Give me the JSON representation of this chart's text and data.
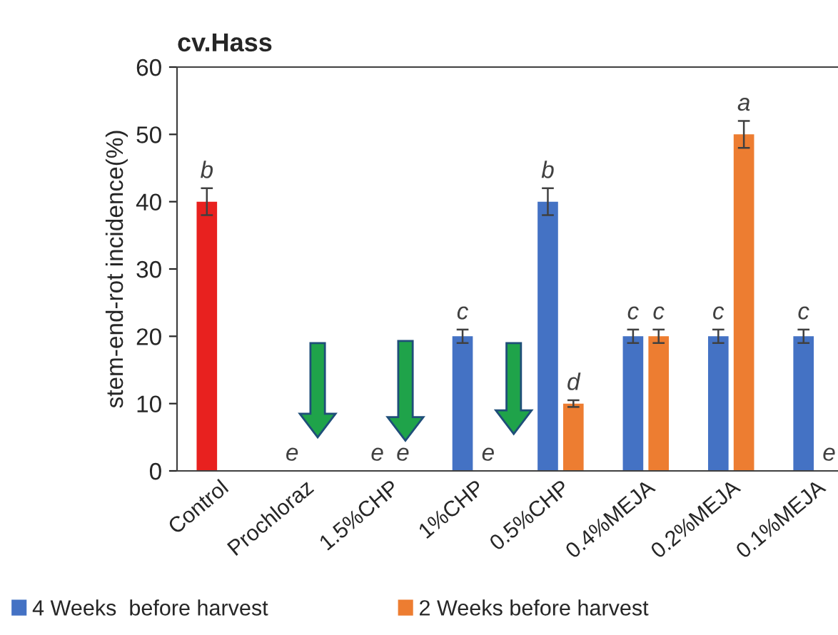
{
  "chart_data": {
    "type": "bar",
    "title": "cv.Hass",
    "ylabel": "stem-end-rot incidence(%)",
    "categories": [
      "Control",
      "Prochloraz",
      "1.5%CHP",
      "1%CHP",
      "0.5%CHP",
      "0.4%MEJA",
      "0.2%MEJA",
      "0.1%MEJA"
    ],
    "series": [
      {
        "name": "4 Weeks  before harvest",
        "color": "#4472c4",
        "colors": [
          "#e8211f",
          "#4472c4",
          "#4472c4",
          "#4472c4",
          "#4472c4",
          "#4472c4",
          "#4472c4",
          "#4472c4"
        ],
        "values": [
          40,
          0,
          0,
          20,
          40,
          20,
          20,
          20
        ],
        "errors": [
          2,
          null,
          null,
          1,
          2,
          1,
          1,
          1
        ],
        "value_labels": [
          "b",
          "e",
          "e",
          "c",
          "b",
          "c",
          "c",
          "c"
        ]
      },
      {
        "name": "2 Weeks before harvest",
        "color": "#ed7d31",
        "values": [
          null,
          null,
          0,
          0,
          10,
          20,
          50,
          0
        ],
        "errors": [
          null,
          null,
          null,
          null,
          0.5,
          1,
          2,
          null
        ],
        "value_labels": [
          null,
          null,
          "e",
          "e",
          "d",
          "c",
          "a",
          "e"
        ]
      }
    ],
    "ylim": [
      0,
      60
    ],
    "yticks": [
      0,
      10,
      20,
      30,
      40,
      50,
      60
    ],
    "grid": false,
    "legend": "bottom"
  }
}
